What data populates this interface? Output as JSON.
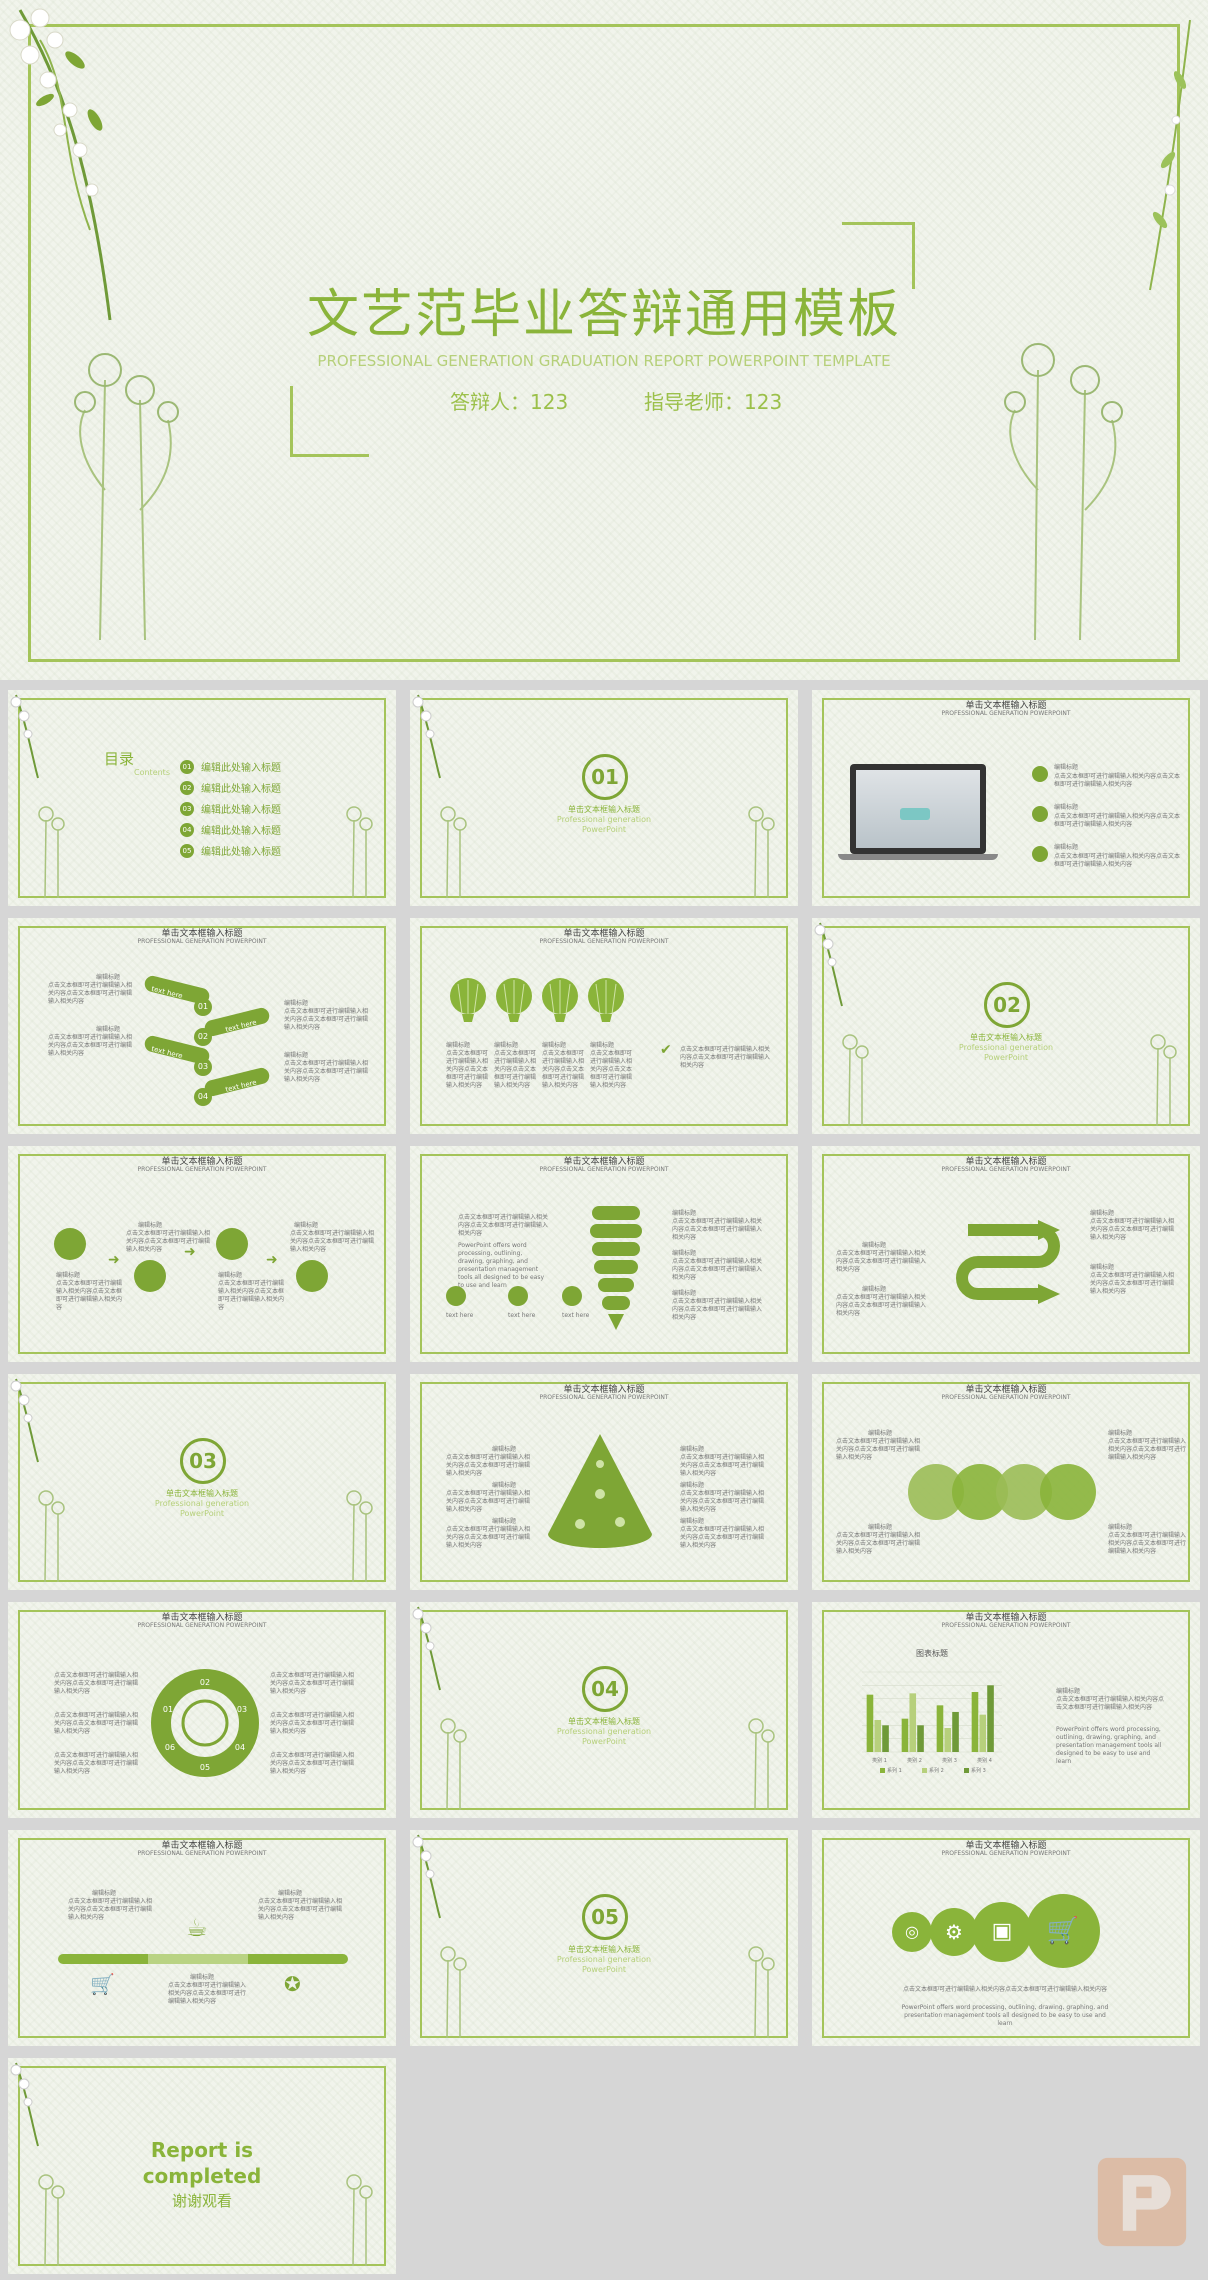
{
  "cover": {
    "title": "文艺范毕业答辩通用模板",
    "subtitle": "PROFESSIONAL GENERATION GRADUATION REPORT POWERPOINT TEMPLATE",
    "presenter": "答辩人：123",
    "advisor": "指导老师：123"
  },
  "toc": {
    "title": "目录",
    "sub": "Contents",
    "items": [
      {
        "num": "01",
        "label": "编辑此处输入标题"
      },
      {
        "num": "02",
        "label": "编辑此处输入标题"
      },
      {
        "num": "03",
        "label": "编辑此处输入标题"
      },
      {
        "num": "04",
        "label": "编辑此处输入标题"
      },
      {
        "num": "05",
        "label": "编辑此处输入标题"
      }
    ]
  },
  "common": {
    "header": "单击文本框输入标题",
    "header_en": "PROFESSIONAL GENERATION POWERPOINT",
    "section_label": "单击文本框输入标题",
    "section_en1": "Professional generation",
    "section_en2": "PowerPoint",
    "item_title": "编辑标题",
    "body_text": "点击文本框即可进行编辑输入相关内容点击文本框即可进行编辑输入相关内容",
    "text_here": "text here",
    "pp_text": "PowerPoint offers word processing, outlining, drawing, graphing, and presentation management tools all designed to be easy to use and learn"
  },
  "sections": [
    "01",
    "02",
    "03",
    "04",
    "05"
  ],
  "chart_slide": {
    "chart_title": "图表标题"
  },
  "ending": {
    "line1": "Report is",
    "line2": "completed",
    "line3": "谢谢观看"
  },
  "chart_data": {
    "type": "bar",
    "title": "图表标题",
    "categories": [
      "类别 1",
      "类别 2",
      "类别 3",
      "类别 4"
    ],
    "series": [
      {
        "name": "系列 1",
        "values": [
          4.3,
          2.5,
          3.5,
          4.5
        ]
      },
      {
        "name": "系列 2",
        "values": [
          2.4,
          4.4,
          1.8,
          2.8
        ]
      },
      {
        "name": "系列 3",
        "values": [
          2.0,
          2.0,
          3.0,
          5.0
        ]
      }
    ],
    "ylim": [
      0,
      6
    ]
  },
  "colors": {
    "accent": "#7ea635",
    "light": "#b7d07c",
    "bg": "#f1f4ec"
  }
}
